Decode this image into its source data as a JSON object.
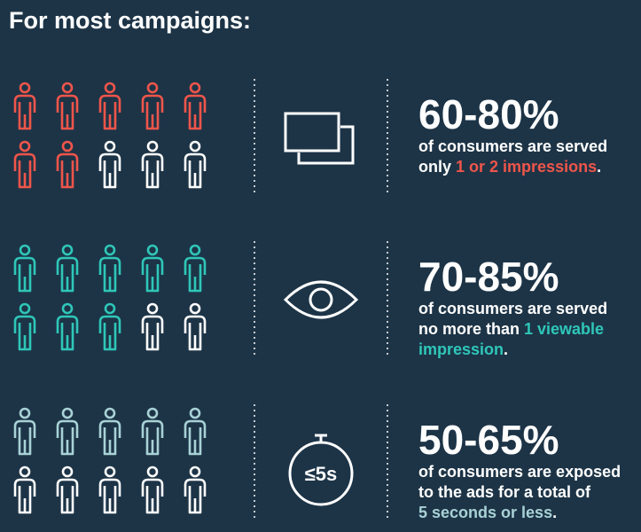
{
  "title": "For most campaigns:",
  "rows": [
    {
      "stat": "60-80%",
      "color": "#f0554a",
      "icon": "impressions",
      "people": {
        "total": 10,
        "highlighted": 7
      },
      "lines": [
        [
          {
            "text": "of consumers are served"
          }
        ],
        [
          {
            "text": "only "
          },
          {
            "text": "1 or 2 impressions",
            "highlight": true
          },
          {
            "text": "."
          }
        ]
      ]
    },
    {
      "stat": "70-85%",
      "color": "#2ec7b8",
      "icon": "eye",
      "people": {
        "total": 10,
        "highlighted": 8
      },
      "lines": [
        [
          {
            "text": "of consumers are served"
          }
        ],
        [
          {
            "text": "no more than "
          },
          {
            "text": "1 viewable",
            "highlight": true
          }
        ],
        [
          {
            "text": "impression",
            "highlight": true
          },
          {
            "text": "."
          }
        ]
      ]
    },
    {
      "stat": "50-65%",
      "color": "#a8d2d6",
      "icon": "stopwatch",
      "icon_label": "≤5s",
      "people": {
        "total": 10,
        "highlighted": 5
      },
      "lines": [
        [
          {
            "text": "of consumers are exposed"
          }
        ],
        [
          {
            "text": "to the ads for a total of"
          }
        ],
        [
          {
            "text": "5 seconds or less",
            "highlight": true
          },
          {
            "text": "."
          }
        ]
      ]
    }
  ]
}
